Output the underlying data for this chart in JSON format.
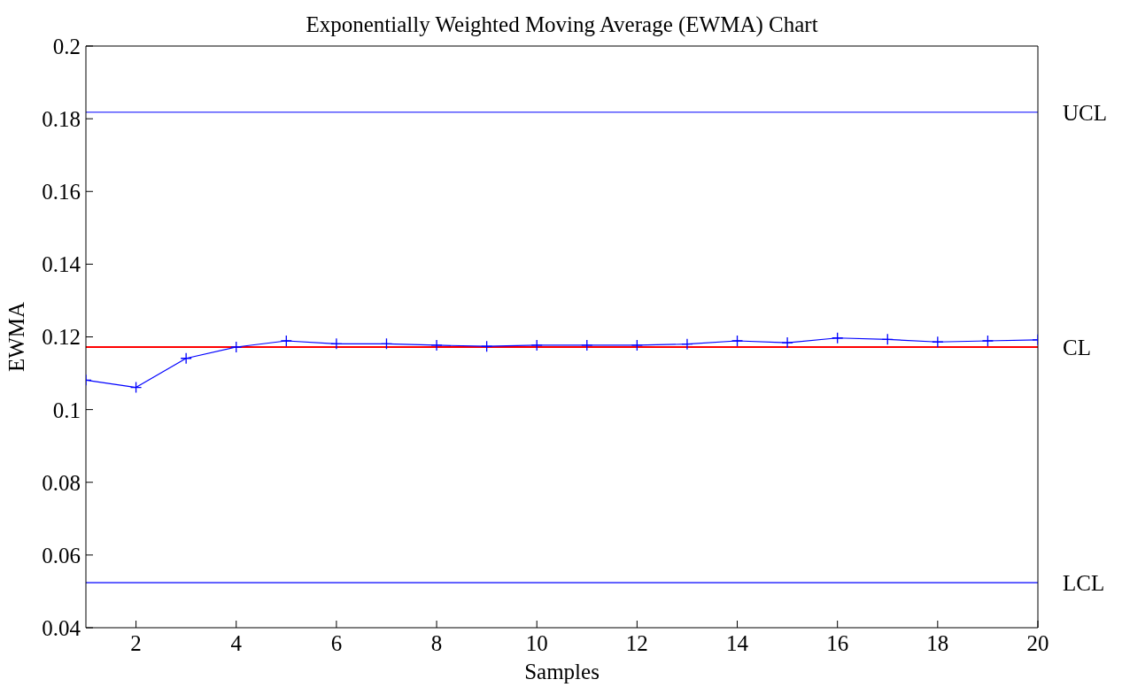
{
  "chart_data": {
    "type": "line",
    "title": "Exponentially Weighted Moving Average (EWMA) Chart",
    "xlabel": "Samples",
    "ylabel": "EWMA",
    "x": [
      1,
      2,
      3,
      4,
      5,
      6,
      7,
      8,
      9,
      10,
      11,
      12,
      13,
      14,
      15,
      16,
      17,
      18,
      19,
      20
    ],
    "series": [
      {
        "color": "#0000ff",
        "values": [
          0.1081,
          0.1061,
          0.1141,
          0.1172,
          0.1189,
          0.1181,
          0.1181,
          0.1177,
          0.1174,
          0.1177,
          0.1177,
          0.1177,
          0.118,
          0.1189,
          0.1184,
          0.1197,
          0.1193,
          0.1186,
          0.1189,
          0.1192
        ]
      }
    ],
    "marker": "cross",
    "line_style": "solid",
    "grid": false,
    "legend": false,
    "xlim": [
      1,
      20
    ],
    "xticks": [
      2,
      4,
      6,
      8,
      10,
      12,
      14,
      16,
      18,
      20
    ],
    "ylim": [
      0.04,
      0.2
    ],
    "yticks": [
      0.04,
      0.06,
      0.08,
      0.1,
      0.12,
      0.14,
      0.16,
      0.18,
      0.2
    ],
    "ref_lines": [
      {
        "axis": "y",
        "value": 0.1818,
        "label": "UCL",
        "color": "#0000ff"
      },
      {
        "axis": "y",
        "value": 0.1172,
        "label": "CL",
        "color": "#ff0000"
      },
      {
        "axis": "y",
        "value": 0.0524,
        "label": "LCL",
        "color": "#0000ff"
      }
    ]
  }
}
